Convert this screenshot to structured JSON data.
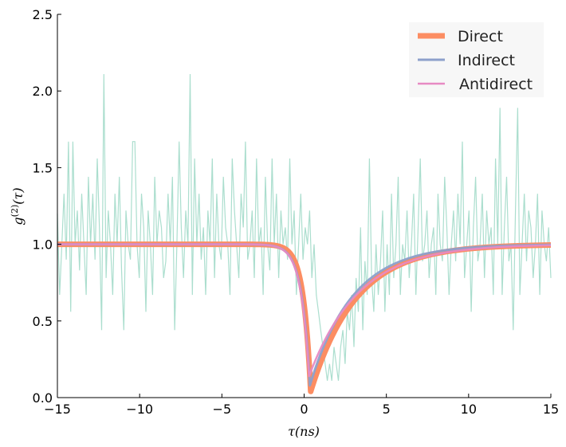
{
  "chart_data": {
    "type": "line",
    "xlabel": "τ(ns)",
    "ylabel_base": "g",
    "ylabel_sup": "(2)",
    "ylabel_arg": "(τ)",
    "xlim": [
      -15,
      15
    ],
    "ylim": [
      0,
      2.5
    ],
    "x_ticks": [
      -15,
      -10,
      -5,
      0,
      5,
      10,
      15
    ],
    "x_tick_labels": [
      "−15",
      "−10",
      "−5",
      "0",
      "5",
      "10",
      "15"
    ],
    "y_ticks": [
      0,
      0.5,
      1.0,
      1.5,
      2.0,
      2.5
    ],
    "y_tick_labels": [
      "0.0",
      "0.5",
      "1.0",
      "1.5",
      "2.0",
      "2.5"
    ],
    "grid": false,
    "legend_position": "top-right",
    "noisy_data": {
      "color": "#66c2a5",
      "x_start": -15,
      "x_end": 15,
      "values": [
        1.2,
        0.67,
        1.0,
        1.33,
        0.9,
        1.67,
        0.56,
        1.67,
        1.0,
        1.22,
        0.83,
        1.33,
        1.0,
        0.67,
        1.44,
        1.0,
        1.33,
        0.9,
        1.56,
        1.11,
        0.44,
        2.11,
        0.78,
        1.22,
        1.0,
        0.67,
        1.33,
        1.0,
        1.44,
        0.83,
        0.44,
        1.22,
        1.0,
        0.9,
        1.67,
        1.67,
        1.0,
        0.78,
        1.33,
        1.11,
        0.56,
        1.22,
        1.0,
        0.67,
        1.44,
        1.0,
        1.22,
        1.11,
        0.78,
        0.89,
        1.33,
        1.0,
        1.44,
        0.44,
        1.0,
        1.67,
        1.11,
        0.78,
        1.22,
        1.0,
        2.11,
        0.67,
        1.56,
        1.0,
        1.33,
        0.9,
        1.11,
        0.67,
        1.22,
        1.0,
        1.56,
        0.78,
        1.33,
        1.0,
        0.9,
        1.44,
        1.11,
        1.0,
        0.67,
        1.56,
        1.22,
        1.0,
        0.78,
        1.33,
        1.11,
        1.67,
        0.9,
        1.0,
        1.22,
        0.78,
        1.56,
        1.0,
        1.11,
        0.67,
        1.44,
        1.0,
        0.83,
        1.56,
        1.0,
        1.33,
        0.78,
        1.22,
        1.0,
        1.11,
        0.9,
        1.56,
        1.0,
        1.22,
        0.67,
        1.0,
        1.33,
        0.9,
        1.11,
        1.0,
        1.22,
        0.78,
        1.0,
        0.67,
        0.56,
        0.44,
        0.33,
        0.22,
        0.11,
        0.22,
        0.11,
        0.33,
        0.22,
        0.11,
        0.33,
        0.44,
        0.22,
        0.56,
        0.44,
        0.67,
        0.33,
        0.78,
        0.56,
        1.11,
        0.44,
        0.89,
        0.67,
        1.56,
        0.78,
        0.56,
        1.0,
        0.67,
        0.89,
        1.22,
        0.56,
        1.0,
        0.67,
        1.33,
        0.78,
        1.0,
        1.44,
        0.67,
        1.0,
        0.89,
        1.22,
        0.78,
        1.0,
        1.33,
        0.67,
        1.11,
        1.56,
        0.89,
        1.0,
        1.22,
        0.78,
        1.0,
        1.11,
        0.67,
        1.33,
        1.0,
        0.89,
        1.44,
        1.11,
        0.67,
        1.0,
        1.22,
        0.89,
        1.33,
        1.0,
        1.67,
        0.78,
        1.0,
        1.22,
        0.56,
        1.11,
        1.44,
        0.89,
        1.0,
        1.33,
        0.78,
        1.22,
        1.0,
        1.11,
        0.67,
        1.56,
        1.0,
        1.89,
        0.67,
        1.11,
        1.44,
        0.89,
        1.0,
        0.44,
        1.22,
        1.89,
        0.67,
        1.0,
        1.33,
        0.89,
        1.22,
        1.11,
        0.78,
        1.0,
        1.33,
        0.67,
        1.22,
        1.0,
        0.89,
        1.11,
        0.78
      ]
    },
    "series": [
      {
        "name": "Direct",
        "color": "#fc8d62",
        "model": {
          "baseline": 1.0,
          "min": 0.04,
          "center": 0.4,
          "rise_tau": 0.45,
          "decay_tau": 2.75
        }
      },
      {
        "name": "Indirect",
        "color": "#8da0cb",
        "model": {
          "baseline": 1.0,
          "min": 0.08,
          "center": 0.35,
          "rise_tau": 0.5,
          "decay_tau": 2.6
        }
      },
      {
        "name": "Antidirect",
        "color": "#e78ac3",
        "model": {
          "baseline": 1.0,
          "min": 0.14,
          "center": 0.3,
          "rise_tau": 0.5,
          "decay_tau": 3.0
        }
      }
    ]
  }
}
